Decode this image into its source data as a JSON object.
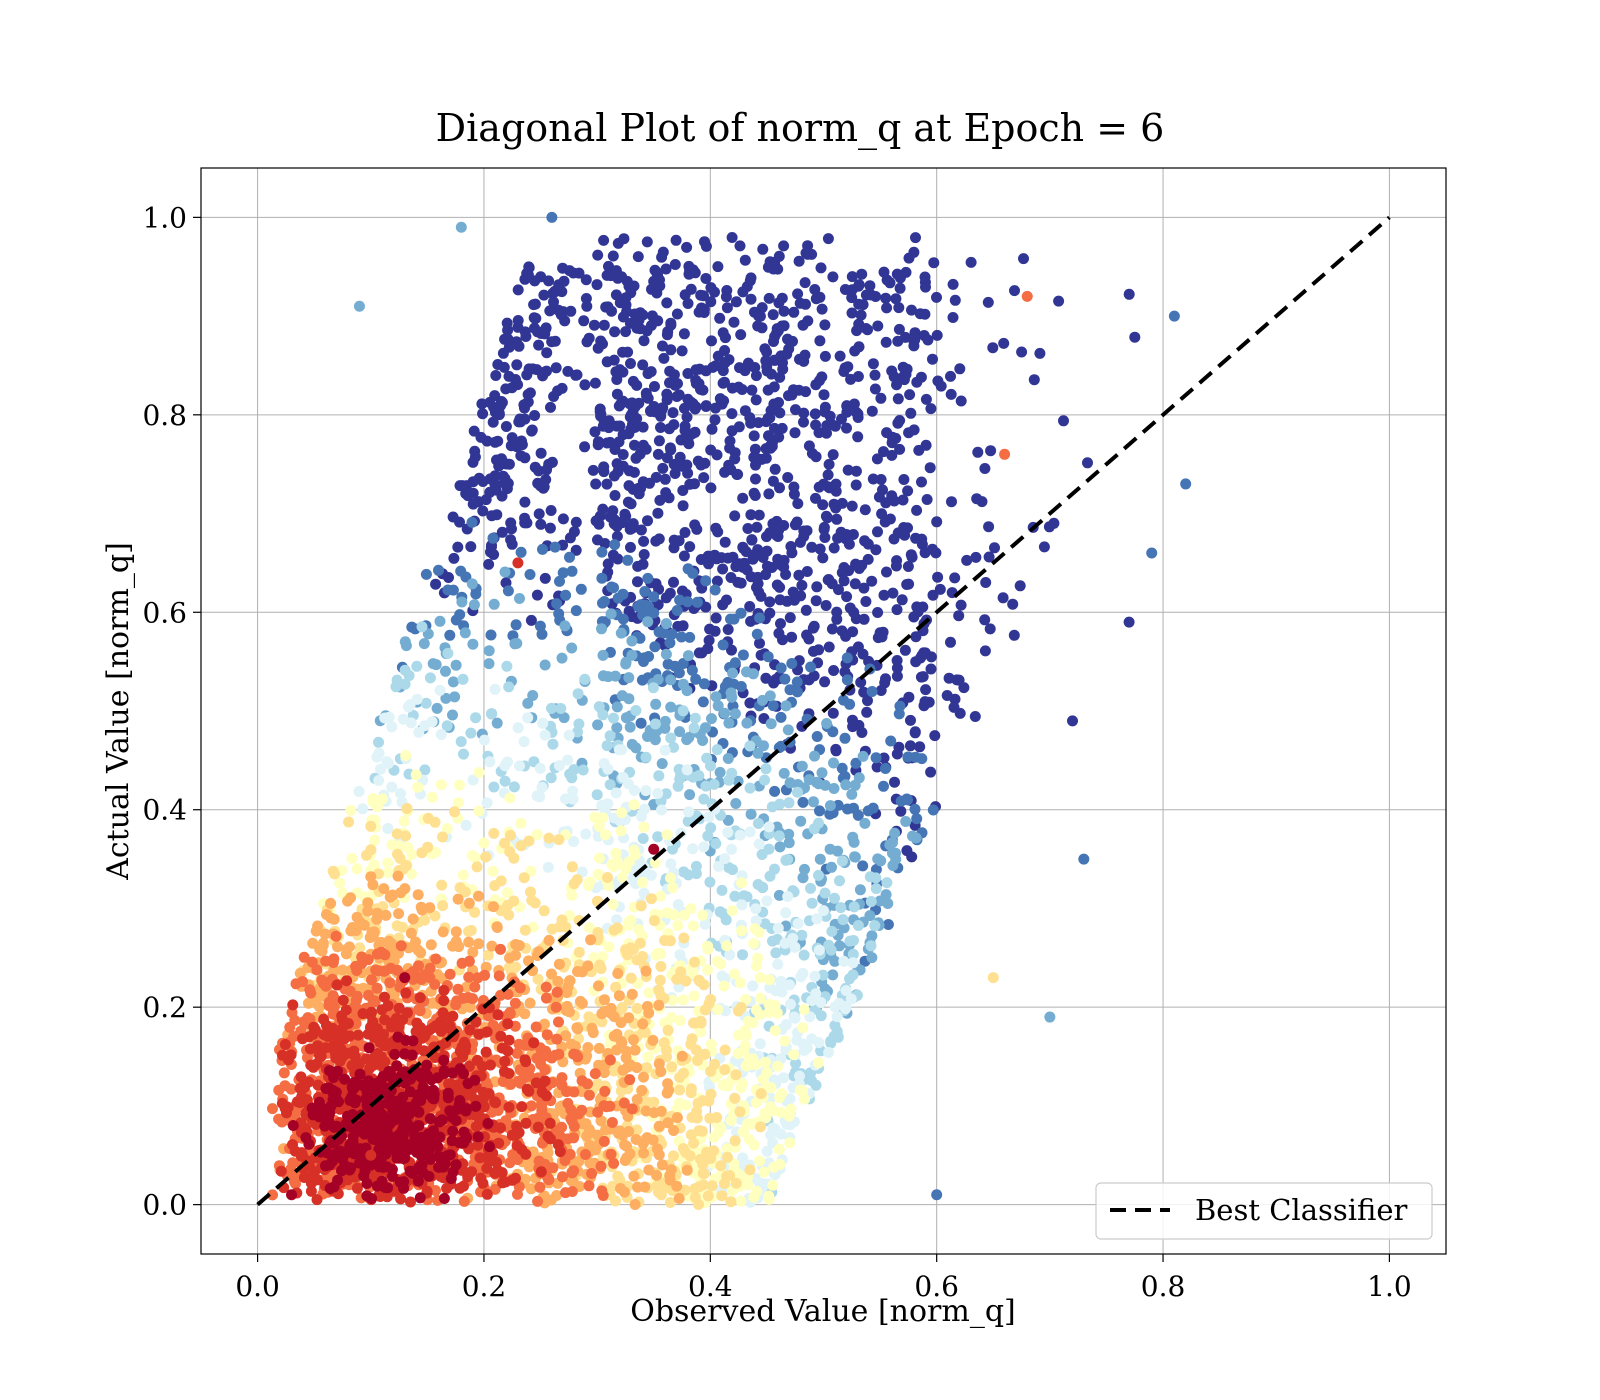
{
  "chart_data": {
    "type": "scatter",
    "title": "Diagonal Plot of norm_q at Epoch = 6",
    "xlabel": "Observed Value [norm_q]",
    "ylabel": "Actual Value [norm_q]",
    "xlim": [
      -0.05,
      1.05
    ],
    "ylim": [
      -0.05,
      1.05
    ],
    "xticks": [
      0.0,
      0.2,
      0.4,
      0.6,
      0.8,
      1.0
    ],
    "yticks": [
      0.0,
      0.2,
      0.4,
      0.6,
      0.8,
      1.0
    ],
    "xtick_labels": [
      "0.0",
      "0.2",
      "0.4",
      "0.6",
      "0.8",
      "1.0"
    ],
    "ytick_labels": [
      "0.0",
      "0.2",
      "0.4",
      "0.6",
      "0.8",
      "1.0"
    ],
    "grid": true,
    "colormap": "RdYlBu (point density)",
    "colors": [
      "#a50026",
      "#d73027",
      "#f46d43",
      "#fdae61",
      "#fee090",
      "#ffffbf",
      "#e0f3f8",
      "#abd9e9",
      "#74add1",
      "#4575b4",
      "#313695"
    ],
    "reference_line": {
      "name": "Best Classifier",
      "x": [
        0.0,
        1.0
      ],
      "y": [
        0.0,
        1.0
      ],
      "style": "dashed",
      "color": "#000000"
    },
    "legend": {
      "position": "lower-right",
      "entries": [
        "Best Classifier"
      ]
    },
    "scatter_summary": {
      "description": "dense cloud of several thousand points",
      "x_range": [
        0.0,
        0.82
      ],
      "y_range": [
        0.0,
        1.0
      ],
      "high_density_region": {
        "x": [
          0.0,
          0.3
        ],
        "y": [
          0.0,
          0.3
        ]
      },
      "sample_points": [
        {
          "x": 0.03,
          "y": 0.01,
          "color": "#a50026"
        },
        {
          "x": 0.1,
          "y": 0.05,
          "color": "#d73027"
        },
        {
          "x": 0.18,
          "y": 0.1,
          "color": "#a50026"
        },
        {
          "x": 0.13,
          "y": 0.23,
          "color": "#a50026"
        },
        {
          "x": 0.35,
          "y": 0.36,
          "color": "#a50026"
        },
        {
          "x": 0.23,
          "y": 0.65,
          "color": "#d73027"
        },
        {
          "x": 0.68,
          "y": 0.92,
          "color": "#f46d43"
        },
        {
          "x": 0.66,
          "y": 0.76,
          "color": "#f46d43"
        },
        {
          "x": 0.26,
          "y": 1.0,
          "color": "#4575b4"
        },
        {
          "x": 0.81,
          "y": 0.9,
          "color": "#4575b4"
        },
        {
          "x": 0.82,
          "y": 0.73,
          "color": "#4575b4"
        },
        {
          "x": 0.79,
          "y": 0.66,
          "color": "#4575b4"
        },
        {
          "x": 0.77,
          "y": 0.59,
          "color": "#313695"
        },
        {
          "x": 0.7,
          "y": 0.19,
          "color": "#74add1"
        },
        {
          "x": 0.73,
          "y": 0.35,
          "color": "#4575b4"
        },
        {
          "x": 0.6,
          "y": 0.01,
          "color": "#4575b4"
        },
        {
          "x": 0.09,
          "y": 0.91,
          "color": "#74add1"
        },
        {
          "x": 0.18,
          "y": 0.99,
          "color": "#74add1"
        },
        {
          "x": 0.65,
          "y": 0.23,
          "color": "#fee090"
        },
        {
          "x": 0.72,
          "y": 0.49,
          "color": "#313695"
        }
      ]
    }
  }
}
